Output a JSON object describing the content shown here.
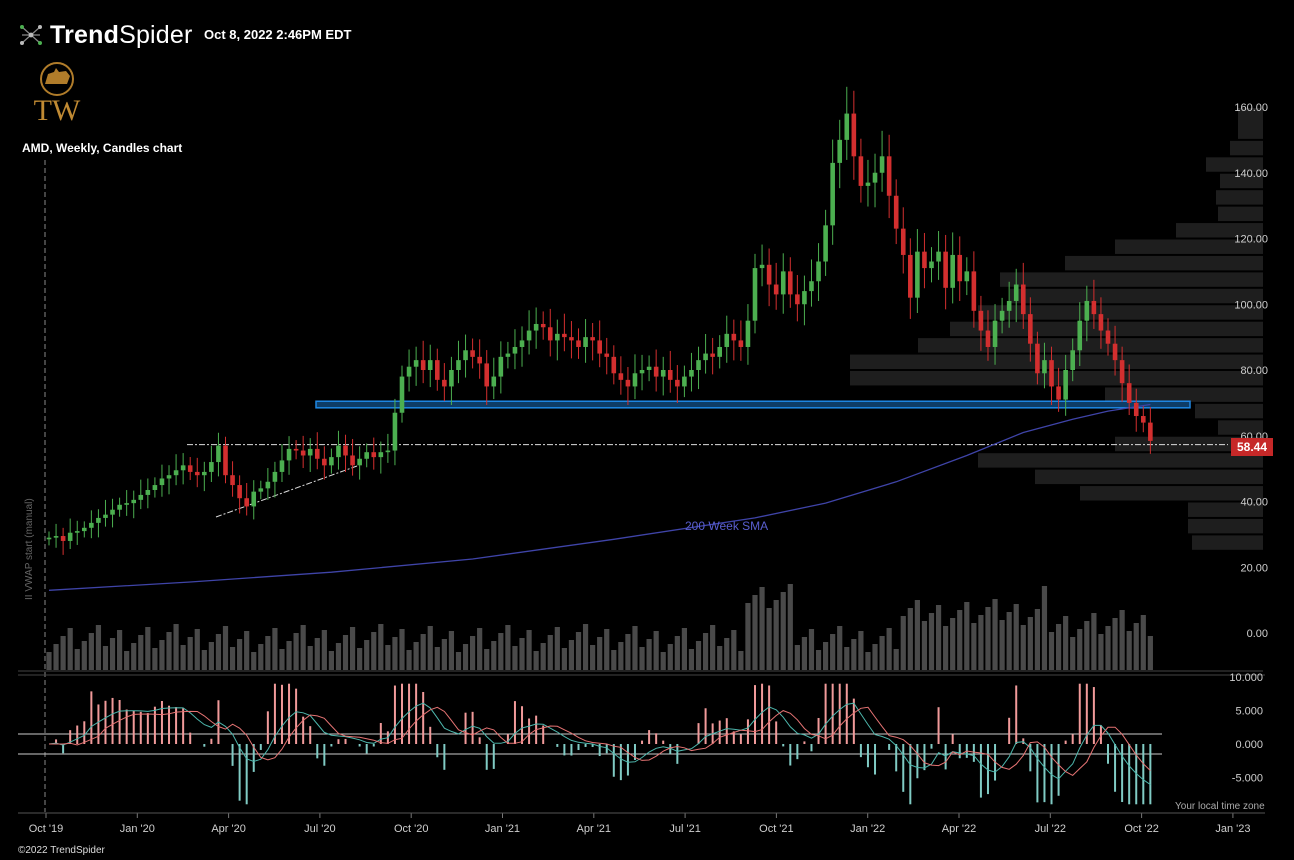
{
  "header": {
    "brand_bold": "Trend",
    "brand_light": "Spider",
    "timestamp": "Oct 8, 2022 2:46PM EDT",
    "watermark_text": "TW",
    "chart_title": "AMD, Weekly, Candles chart",
    "copyright": "©2022 TrendSpider",
    "timezone_note": "Your local time zone",
    "vwap_note": "II VWAP start (manual)"
  },
  "colors": {
    "background": "#000000",
    "up_candle": "#4caf50",
    "down_candle": "#d32f2f",
    "sma": "#3f44a8",
    "support_zone": "#1e88e5",
    "volume": "#4a4a4a",
    "volume_profile": "#1e1e1e",
    "osc_pos": "#f19a9a",
    "osc_neg": "#80cbc4",
    "price_tag": "#c62828"
  },
  "chart_data": {
    "type": "candlestick",
    "symbol": "AMD",
    "timeframe": "Weekly",
    "price_axis": {
      "ticks": [
        "160.00",
        "140.00",
        "120.00",
        "100.00",
        "80.00",
        "60.00",
        "40.00",
        "20.00",
        "0.00"
      ],
      "values": [
        160,
        140,
        120,
        100,
        80,
        60,
        40,
        20,
        0
      ]
    },
    "last_price": "58.44",
    "time_axis": [
      "Oct '19",
      "Jan '20",
      "Apr '20",
      "Jul '20",
      "Oct '20",
      "Jan '21",
      "Apr '21",
      "Jul '21",
      "Oct '21",
      "Jan '22",
      "Apr '22",
      "Jul '22",
      "Oct '22",
      "Jan '23"
    ],
    "closes": [
      29,
      29.5,
      28,
      30.5,
      31,
      32,
      33.5,
      35,
      36,
      37.5,
      39,
      39.5,
      40.5,
      42,
      43.5,
      45,
      47,
      48,
      49.5,
      51,
      49,
      48,
      49,
      52,
      57,
      48,
      45,
      41,
      38.5,
      43,
      44,
      46,
      49,
      52.5,
      56,
      55.5,
      54,
      56,
      53,
      51,
      53.5,
      57,
      54,
      51,
      53,
      55,
      53.5,
      55,
      55.5,
      67,
      78,
      81,
      83,
      80,
      83,
      77,
      75,
      80,
      83,
      86,
      84,
      82,
      75,
      78,
      84,
      85,
      87,
      89,
      92,
      94,
      93,
      89,
      91,
      90,
      89,
      87,
      90,
      89,
      85,
      84,
      79,
      77,
      75,
      79,
      80,
      81,
      78,
      80,
      77,
      75,
      78,
      80,
      83,
      85,
      84,
      87,
      91,
      89,
      87,
      95,
      111,
      112,
      106,
      103,
      110,
      103,
      100,
      104,
      107,
      113,
      124,
      143,
      150,
      158,
      145,
      136,
      137,
      140,
      145,
      133,
      123,
      115,
      102,
      116,
      111,
      113,
      116,
      105,
      115,
      107,
      110,
      98,
      92,
      87,
      95,
      98,
      101,
      106,
      97,
      88,
      79,
      83,
      75,
      71,
      80,
      86,
      95,
      101,
      97,
      92,
      88,
      83,
      76,
      70,
      66,
      64,
      58.44
    ],
    "sma_label": "200 Week SMA",
    "sma_points": [
      [
        0,
        13
      ],
      [
        20,
        15.5
      ],
      [
        40,
        18.5
      ],
      [
        60,
        22.5
      ],
      [
        80,
        28.5
      ],
      [
        100,
        35
      ],
      [
        110,
        39.5
      ],
      [
        120,
        46
      ],
      [
        130,
        54
      ],
      [
        138,
        61
      ],
      [
        145,
        65
      ],
      [
        150,
        67.5
      ],
      [
        156,
        69.5
      ]
    ],
    "support_zone": {
      "low": 68.5,
      "high": 70.5
    },
    "breakout_level": 57.3,
    "oscillator_axis": [
      "10.000",
      "5.000",
      "0.000",
      "-5.000"
    ],
    "oscillator_values": [
      10,
      5,
      0,
      -5
    ]
  }
}
